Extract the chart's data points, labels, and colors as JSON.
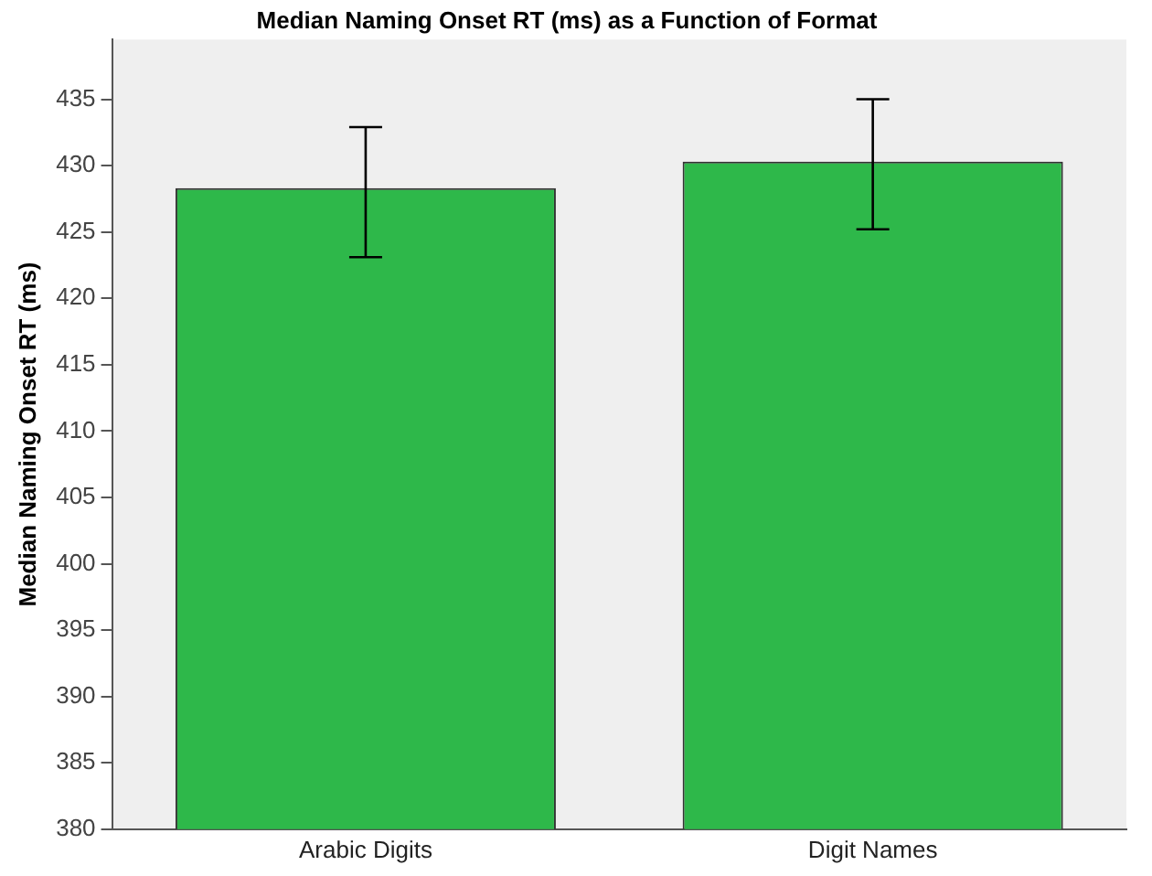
{
  "chart_data": {
    "type": "bar",
    "title": "Median Naming Onset RT (ms) as a Function of Format",
    "ylabel": "Median Naming Onset RT (ms)",
    "categories": [
      "Arabic Digits",
      "Digit Names"
    ],
    "values": [
      428.3,
      430.3
    ],
    "errors": [
      [
        423.1,
        432.9
      ],
      [
        425.2,
        435.0
      ]
    ],
    "color": "#2eb84a",
    "ylim": [
      380,
      439.5
    ],
    "yticks": [
      380,
      385,
      390,
      395,
      400,
      405,
      410,
      415,
      420,
      425,
      430,
      435
    ],
    "grid": false,
    "legend": false
  }
}
